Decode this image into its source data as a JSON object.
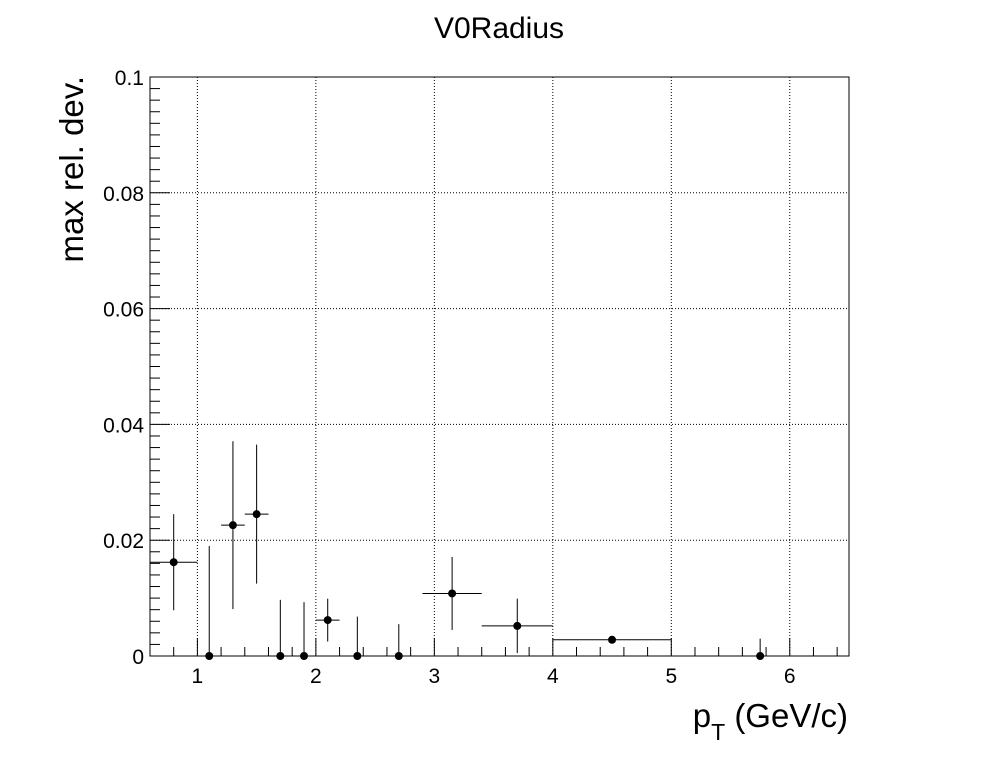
{
  "chart_data": {
    "type": "scatter",
    "title": "V0Radius",
    "xlabel": "p",
    "xlabel_sub": "T",
    "xlabel_unit": "(GeV/c)",
    "ylabel": "max rel. dev.",
    "xlim": [
      0.6,
      6.5
    ],
    "ylim": [
      0,
      0.1
    ],
    "x_ticks": [
      {
        "value": 1,
        "label": "1"
      },
      {
        "value": 2,
        "label": "2"
      },
      {
        "value": 3,
        "label": "3"
      },
      {
        "value": 4,
        "label": "4"
      },
      {
        "value": 5,
        "label": "5"
      },
      {
        "value": 6,
        "label": "6"
      }
    ],
    "y_ticks": [
      {
        "value": 0,
        "label": "0"
      },
      {
        "value": 0.02,
        "label": "0.02"
      },
      {
        "value": 0.04,
        "label": "0.04"
      },
      {
        "value": 0.06,
        "label": "0.06"
      },
      {
        "value": 0.08,
        "label": "0.08"
      },
      {
        "value": 0.1,
        "label": "0.1"
      }
    ],
    "grid": true,
    "colors": {
      "marker": "#000000",
      "grid": "#000000",
      "frame": "#000000"
    },
    "series": [
      {
        "points": [
          {
            "x": 0.8,
            "x_lo": 0.6,
            "x_hi": 1.0,
            "y": 0.0162,
            "y_err": 0.0083
          },
          {
            "x": 1.1,
            "x_lo": 1.0,
            "x_hi": 1.2,
            "y": 0.0,
            "y_err": 0.019
          },
          {
            "x": 1.3,
            "x_lo": 1.2,
            "x_hi": 1.4,
            "y": 0.0226,
            "y_err": 0.0145
          },
          {
            "x": 1.5,
            "x_lo": 1.4,
            "x_hi": 1.6,
            "y": 0.0245,
            "y_err": 0.012
          },
          {
            "x": 1.7,
            "x_lo": 1.6,
            "x_hi": 1.8,
            "y": 0.0,
            "y_err": 0.0097
          },
          {
            "x": 1.9,
            "x_lo": 1.8,
            "x_hi": 2.0,
            "y": 0.0,
            "y_err": 0.0093
          },
          {
            "x": 2.1,
            "x_lo": 2.0,
            "x_hi": 2.2,
            "y": 0.0062,
            "y_err": 0.0037
          },
          {
            "x": 2.35,
            "x_lo": 2.2,
            "x_hi": 2.5,
            "y": 0.0,
            "y_err": 0.0068
          },
          {
            "x": 2.7,
            "x_lo": 2.5,
            "x_hi": 2.9,
            "y": 0.0,
            "y_err": 0.0055
          },
          {
            "x": 3.15,
            "x_lo": 2.9,
            "x_hi": 3.4,
            "y": 0.0108,
            "y_err": 0.0063
          },
          {
            "x": 3.7,
            "x_lo": 3.4,
            "x_hi": 4.0,
            "y": 0.0052,
            "y_err": 0.0047
          },
          {
            "x": 4.5,
            "x_lo": 4.0,
            "x_hi": 5.0,
            "y": 0.0028,
            "y_err": 0.0
          },
          {
            "x": 5.75,
            "x_lo": 5.0,
            "x_hi": 6.5,
            "y": 0.0,
            "y_err": 0.003
          }
        ]
      }
    ]
  }
}
